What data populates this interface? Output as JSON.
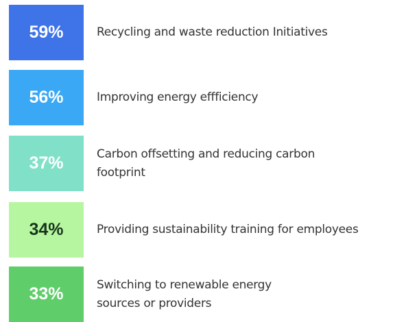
{
  "items": [
    {
      "percent": "59%",
      "label": [
        "Recycling and waste reduction Initiatives"
      ],
      "color": "#3f73e8",
      "text_color": "#ffffff"
    },
    {
      "percent": "56%",
      "label": [
        "Improving energy effficiency"
      ],
      "color": "#3aa8f4",
      "text_color": "#ffffff"
    },
    {
      "percent": "37%",
      "label": [
        "Carbon offsetting and reducing carbon",
        "footprint"
      ],
      "color": "#80e0c8",
      "text_color": "#ffffff"
    },
    {
      "percent": "34%",
      "label": [
        "Providing sustainability training for employees"
      ],
      "color": "#b7f6a0",
      "text_color": "#17351c"
    },
    {
      "percent": "33%",
      "label": [
        "Switching to renewable energy",
        "sources or providers"
      ],
      "color": "#5fcd6a",
      "text_color": "#ffffff"
    }
  ]
}
